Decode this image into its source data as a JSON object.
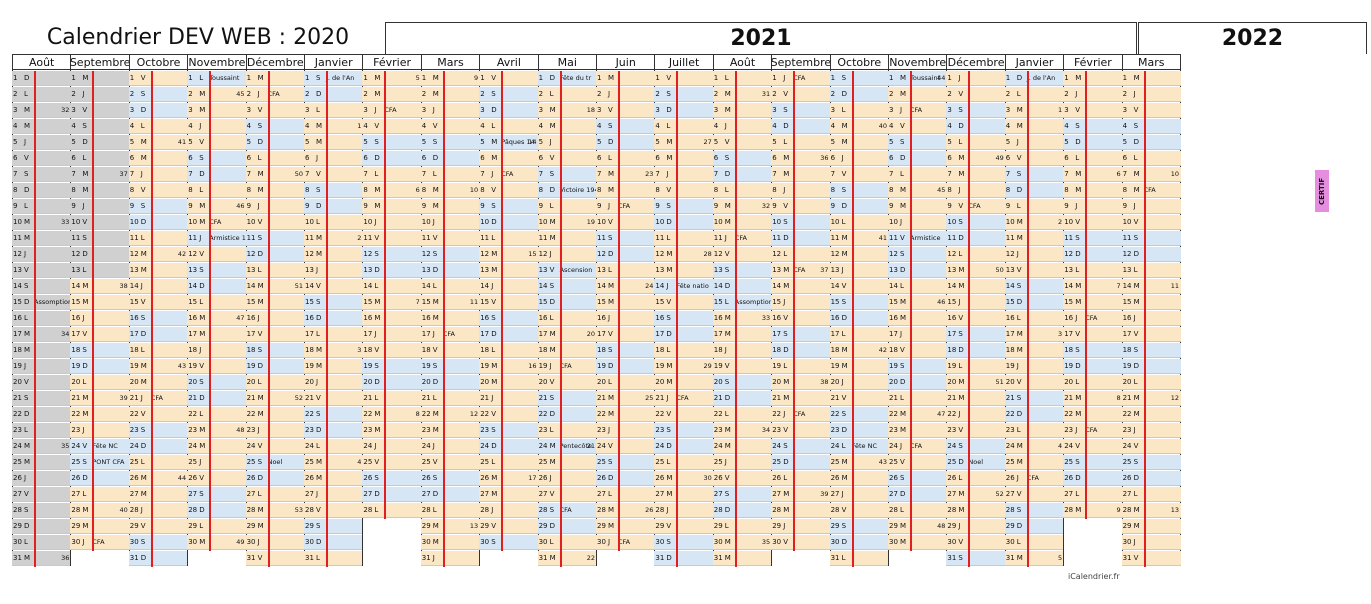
{
  "titles": {
    "y2020": "Calendrier DEV WEB : 2020",
    "y2021": "2021",
    "y2022": "2022"
  },
  "footer": "iCalendrier.fr",
  "certif_label": "CERTIF",
  "colors": {
    "weekend": "#d7e6f5",
    "training": "#fbe7c6",
    "grey": "#d0d0d0",
    "red": "#e02020",
    "certif": "#e58ee0"
  },
  "months": [
    {
      "name": "Août",
      "days": 31,
      "first": 6,
      "greyDays": [
        1,
        2,
        3,
        4,
        5,
        6,
        7,
        8,
        9,
        10,
        11,
        12,
        13,
        14,
        15,
        16,
        17,
        18,
        19,
        20,
        21,
        22,
        23,
        24,
        25,
        26,
        27,
        28,
        29,
        30,
        31
      ],
      "events": {
        "15": "Assomption"
      },
      "weeks": {
        "3": "32",
        "10": "33",
        "17": "34",
        "24": "35",
        "31": "36"
      }
    },
    {
      "name": "Septembre",
      "days": 30,
      "first": 2,
      "greyDays": [
        1,
        2,
        3,
        4,
        5,
        6,
        7,
        8,
        9,
        10,
        11,
        12,
        13
      ],
      "events": {
        "24": "Fête NC",
        "25": "PONT CFA",
        "30": "CFA"
      },
      "weeks": {
        "7": "37",
        "14": "38",
        "21": "39",
        "28": "40"
      }
    },
    {
      "name": "Octobre",
      "days": 31,
      "first": 4,
      "events": {
        "21": "CFA"
      },
      "weeks": {
        "5": "41",
        "12": "42",
        "19": "43",
        "26": "44"
      }
    },
    {
      "name": "Novembre",
      "days": 30,
      "first": 0,
      "events": {
        "1": "Toussaint",
        "10": "CFA",
        "11": "Armistice 1918"
      },
      "weeks": {
        "2": "45",
        "9": "46",
        "16": "47",
        "23": "48",
        "30": "49"
      }
    },
    {
      "name": "Décembre",
      "days": 31,
      "first": 2,
      "events": {
        "2": "CFA",
        "25": "Noel"
      },
      "weeks": {
        "7": "50",
        "14": "51",
        "21": "52",
        "28": "53"
      }
    },
    {
      "name": "Janvier",
      "days": 31,
      "first": 5,
      "events": {
        "1": "J. de l'An"
      },
      "weeks": {
        "4": "1",
        "11": "2",
        "18": "3",
        "25": "4"
      }
    },
    {
      "name": "Février",
      "days": 28,
      "first": 1,
      "events": {
        "3": "CFA"
      },
      "weeks": {
        "1": "5",
        "8": "6",
        "15": "7",
        "22": "8"
      }
    },
    {
      "name": "Mars",
      "days": 31,
      "first": 1,
      "events": {
        "17": "CFA"
      },
      "weeks": {
        "1": "9",
        "8": "10",
        "15": "11",
        "22": "12",
        "29": "13"
      }
    },
    {
      "name": "Avril",
      "days": 30,
      "first": 4,
      "events": {
        "5": "Pâques 14",
        "7": "CFA"
      },
      "weeks": {
        "5": "14",
        "12": "15",
        "19": "16",
        "26": "17"
      }
    },
    {
      "name": "Mai",
      "days": 31,
      "first": 6,
      "events": {
        "1": "Fête du tr",
        "8": "Victoire 1945",
        "13": "Ascension",
        "19": "CFA",
        "24": "Pentecôte",
        "28": "CFA"
      },
      "weeks": {
        "3": "18",
        "10": "19",
        "17": "20",
        "24": "21",
        "31": "22"
      }
    },
    {
      "name": "Juin",
      "days": 30,
      "first": 2,
      "events": {
        "9": "CFA",
        "30": "CFA"
      },
      "weeks": {
        "7": "23",
        "14": "24",
        "21": "25",
        "28": "26"
      }
    },
    {
      "name": "Juillet",
      "days": 31,
      "first": 4,
      "events": {
        "14": "Fête natio",
        "21": "CFA"
      },
      "weeks": {
        "5": "27",
        "12": "28",
        "19": "29",
        "26": "30"
      }
    },
    {
      "name": "Août",
      "days": 31,
      "first": 0,
      "events": {
        "11": "CFA",
        "15": "Assomption"
      },
      "weeks": {
        "2": "31",
        "9": "32",
        "16": "33",
        "23": "34",
        "30": "35"
      }
    },
    {
      "name": "Septembre",
      "days": 30,
      "first": 3,
      "events": {
        "1": "CFA",
        "13": "CFA",
        "22": "CFA"
      },
      "weeks": {
        "6": "36",
        "13": "37",
        "20": "38",
        "27": "39"
      }
    },
    {
      "name": "Octobre",
      "days": 31,
      "first": 5,
      "events": {
        "24": "Fête NC"
      },
      "weeks": {
        "4": "40",
        "11": "41",
        "18": "42",
        "25": "43"
      }
    },
    {
      "name": "Novembre",
      "days": 30,
      "first": 1,
      "events": {
        "1": "Toussaint",
        "3": "CFA",
        "11": "Armistice",
        "24": "CFA"
      },
      "weeks": {
        "1": "44",
        "8": "45",
        "15": "46",
        "22": "47",
        "29": "48"
      }
    },
    {
      "name": "Décembre",
      "days": 31,
      "first": 3,
      "events": {
        "9": "CFA",
        "25": "Noel"
      },
      "weeks": {
        "6": "49",
        "13": "50",
        "20": "51",
        "27": "52"
      }
    },
    {
      "name": "Janvier",
      "days": 31,
      "first": 6,
      "events": {
        "1": "J. de l'An",
        "26": "CFA"
      },
      "weeks": {
        "3": "1",
        "10": "2",
        "17": "3",
        "24": "4",
        "31": "5"
      }
    },
    {
      "name": "Février",
      "days": 28,
      "first": 2,
      "events": {
        "16": "CFA",
        "23": "CFA"
      },
      "weeks": {
        "7": "6",
        "14": "7",
        "21": "8",
        "28": "9"
      }
    },
    {
      "name": "Mars",
      "days": 31,
      "first": 2,
      "events": {
        "8": "CFA"
      },
      "weeks": {
        "7": "10",
        "14": "11",
        "21": "12",
        "28": "13"
      }
    }
  ],
  "day_letters": [
    "L",
    "M",
    "M",
    "J",
    "V",
    "S",
    "D"
  ]
}
